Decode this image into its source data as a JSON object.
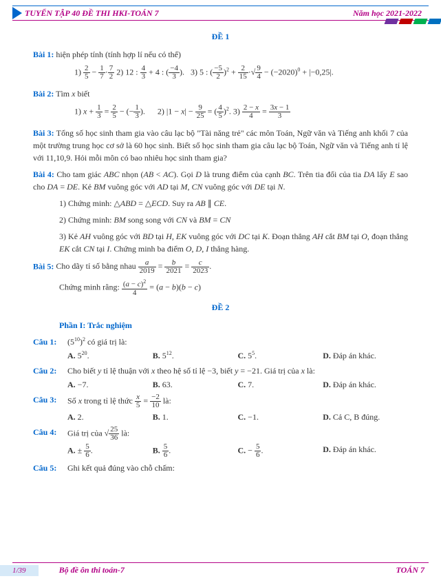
{
  "header": {
    "title": "TUYỂN TẬP 40 ĐỀ THI  HKI-TOÁN 7",
    "year": "Năm học 2021-2022",
    "bar_colors": [
      "#7030a0",
      "#c00000",
      "#00b050",
      "#0070c0"
    ]
  },
  "de1": {
    "title": "ĐỀ 1",
    "bai1": {
      "label": "Bài 1:",
      "text": "hiện phép tính (tính hợp lí nếu có thể)",
      "eq": "1) 2/5 − 1/7 · 7/2  2) 12 : 4/3 + 4 : (−4/3).   3) 5 : (−5/2)² + 2/15 · √(9/4) − (−2020)⁰ + |−0,25|."
    },
    "bai2": {
      "label": "Bài 2:",
      "text": "Tìm x biết",
      "eq": "1) x + 1/3 = 2/5 − (−1/3).      2) |1 − x| − 9/25 = (4/5)². 3) (2−x)/4 = (3x−1)/3"
    },
    "bai3": {
      "label": "Bài 3:",
      "text": "Tổng số học sinh tham gia vào câu lạc bộ \"Tài năng trẻ\" các môn Toán, Ngữ văn và Tiếng anh khối 7 của một trường trung học cơ sở là 60 học sinh. Biết số học sinh tham gia câu lạc bộ Toán, Ngữ văn và Tiếng anh tỉ lệ với 11,10,9. Hỏi mỗi môn có bao nhiêu học sinh tham gia?"
    },
    "bai4": {
      "label": "Bài 4:",
      "lead": "Cho tam giác ABC nhọn (AB < AC). Gọi D là trung điểm của cạnh BC. Trên tia đối của tia DA lấy E sao cho DA = DE. Kẻ BM vuông góc với AD tại M, CN vuông góc với DE tại N.",
      "p1": "1) Chứng minh: △ABD = △ECD. Suy ra AB ∥ CE.",
      "p2": "2) Chứng minh: BM song song với CN và BM = CN",
      "p3": "3) Kẻ AH vuông góc với BD tại H, EK vuông góc với DC tại K. Đoạn thẳng AH cắt BM tại O, đoạn thẳng EK cắt CN tại I. Chứng minh ba điểm O, D, I thẳng hàng."
    },
    "bai5": {
      "label": "Bài 5:",
      "text": "Cho dãy tỉ số bằng nhau a/2019 = b/2021 = c/2023.",
      "proof": "Chứng minh rằng: (a−c)²/4 = (a−b)(b−c)"
    }
  },
  "de2": {
    "title": "ĐỀ 2",
    "phan": "Phần I: Trắc nghiệm",
    "cau1": {
      "label": "Câu 1:",
      "q": "(5¹⁰)² có giá trị là:",
      "a": "5²⁰.",
      "b": "5¹².",
      "c": "5⁵.",
      "d": "Đáp án khác."
    },
    "cau2": {
      "label": "Câu 2:",
      "q": "Cho biết y tỉ lệ thuận với x theo hệ số tỉ lệ −3, biết y = −21. Giá trị của x là:",
      "a": "−7.",
      "b": "63.",
      "c": "7.",
      "d": "Đáp án khác."
    },
    "cau3": {
      "label": "Câu 3:",
      "q": "Số x trong tỉ lệ thức x/5 = −2/10 là:",
      "a": "2.",
      "b": "1.",
      "c": "−1.",
      "d": "Cả C, B đúng."
    },
    "cau4": {
      "label": "Câu 4:",
      "q": "Giá trị của √(25/36) là:",
      "a": "± 5/6.",
      "b": "5/6.",
      "c": "− 5/6.",
      "d": "Đáp án khác."
    },
    "cau5": {
      "label": "Câu 5:",
      "q": "Ghi kết quả đúng vào chỗ chấm:"
    }
  },
  "footer": {
    "page": "1/39",
    "title": "Bộ đề ôn thi toán-7",
    "right": "TOÁN 7"
  },
  "opt_labels": {
    "a": "A.",
    "b": "B.",
    "c": "C.",
    "d": "D."
  }
}
